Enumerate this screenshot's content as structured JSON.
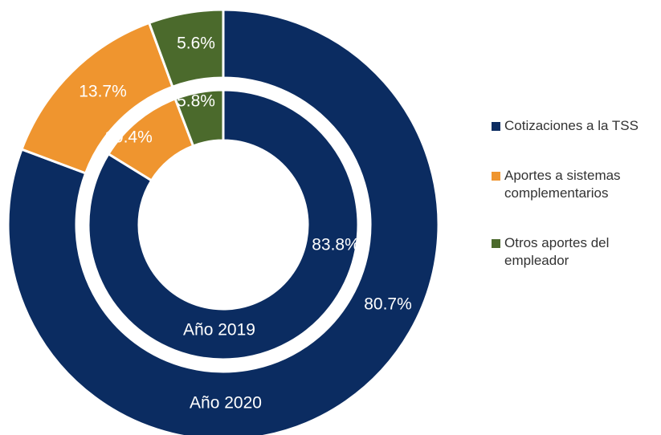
{
  "chart_data": {
    "type": "donut",
    "categories": [
      "Cotizaciones a la TSS",
      "Aportes a sistemas complementarios",
      "Otros aportes del empleador"
    ],
    "colors": [
      "#0b2c61",
      "#ef952f",
      "#4b6a2c"
    ],
    "series": [
      {
        "name": "Año 2019",
        "values": [
          83.8,
          10.4,
          5.8
        ],
        "value_labels": [
          "83.8%",
          "10.4%",
          "5.8%"
        ]
      },
      {
        "name": "Año 2020",
        "values": [
          80.7,
          13.7,
          5.6
        ],
        "value_labels": [
          "80.7%",
          "13.7%",
          "5.6%"
        ]
      }
    ],
    "legend": "right"
  }
}
